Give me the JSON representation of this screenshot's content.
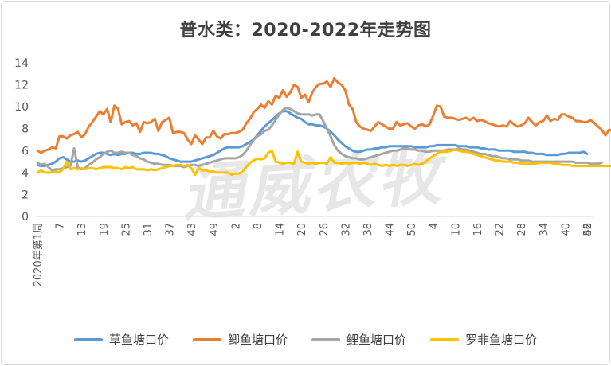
{
  "chart_data": {
    "type": "line",
    "title": "普水类：2020-2022年走势图",
    "watermark": "通威农牧",
    "ylim": [
      0,
      14
    ],
    "yticks": [
      0,
      2,
      4,
      6,
      8,
      10,
      12,
      14
    ],
    "grid": false,
    "legend_position": "bottom",
    "x_first_label": "2020年第1周",
    "x_tick_labels": [
      "7",
      "13",
      "19",
      "25",
      "31",
      "37",
      "43",
      "49",
      "2",
      "8",
      "14",
      "20",
      "26",
      "32",
      "38",
      "44",
      "50",
      "4",
      "10",
      "16",
      "22",
      "28",
      "34",
      "40",
      "46",
      "52"
    ],
    "colors": {
      "草鱼塘口价": "#5b9bd5",
      "鲫鱼塘口价": "#ed7d31",
      "鲤鱼塘口价": "#a5a5a5",
      "罗非鱼塘口价": "#ffc000"
    },
    "series": [
      {
        "name": "草鱼塘口价",
        "values": [
          4.7,
          4.6,
          4.6,
          4.7,
          4.8,
          5.0,
          5.3,
          5.4,
          5.2,
          5.0,
          5.0,
          5.1,
          5.0,
          5.1,
          5.3,
          5.5,
          5.7,
          5.8,
          5.8,
          5.7,
          5.6,
          5.7,
          5.6,
          5.7,
          5.7,
          5.8,
          5.8,
          5.7,
          5.7,
          5.8,
          5.8,
          5.8,
          5.7,
          5.7,
          5.6,
          5.5,
          5.3,
          5.2,
          5.1,
          5.0,
          5.0,
          5.0,
          5.0,
          5.1,
          5.2,
          5.3,
          5.4,
          5.5,
          5.6,
          5.8,
          6.0,
          6.2,
          6.3,
          6.3,
          6.3,
          6.3,
          6.4,
          6.6,
          6.8,
          7.0,
          7.4,
          7.8,
          8.2,
          8.5,
          8.8,
          9.1,
          9.4,
          9.6,
          9.6,
          9.4,
          9.2,
          9.0,
          8.9,
          8.6,
          8.4,
          8.4,
          8.3,
          8.3,
          8.2,
          8.0,
          7.7,
          7.4,
          7.0,
          6.7,
          6.4,
          6.2,
          6.0,
          5.9,
          5.9,
          6.0,
          6.1,
          6.1,
          6.2,
          6.2,
          6.3,
          6.3,
          6.4,
          6.4,
          6.4,
          6.4,
          6.4,
          6.4,
          6.4,
          6.3,
          6.3,
          6.3,
          6.3,
          6.4,
          6.4,
          6.5,
          6.5,
          6.5,
          6.5,
          6.5,
          6.5,
          6.4,
          6.4,
          6.4,
          6.3,
          6.3,
          6.3,
          6.2,
          6.2,
          6.1,
          6.1,
          6.1,
          6.0,
          6.0,
          6.0,
          6.0,
          5.9,
          5.9,
          5.9,
          5.9,
          5.8,
          5.8,
          5.7,
          5.7,
          5.7,
          5.6,
          5.6,
          5.6,
          5.6,
          5.7,
          5.7,
          5.8,
          5.8,
          5.8,
          5.8,
          5.9,
          5.7
        ]
      },
      {
        "name": "鲫鱼塘口价",
        "values": [
          6.0,
          5.8,
          6.0,
          6.1,
          6.3,
          6.2,
          7.3,
          7.3,
          7.1,
          7.4,
          7.5,
          7.7,
          7.2,
          7.5,
          8.2,
          8.6,
          9.1,
          9.6,
          9.3,
          9.8,
          8.6,
          10.1,
          9.8,
          8.4,
          8.6,
          8.7,
          8.3,
          8.5,
          7.7,
          8.6,
          8.5,
          8.6,
          8.9,
          7.8,
          8.6,
          8.8,
          9.0,
          7.6,
          7.7,
          7.7,
          7.6,
          7.0,
          6.6,
          7.4,
          7.0,
          6.6,
          7.2,
          7.2,
          7.8,
          7.3,
          7.1,
          7.5,
          7.5,
          7.6,
          7.6,
          7.7,
          7.9,
          8.5,
          8.9,
          9.5,
          9.8,
          10.2,
          9.9,
          10.5,
          10.2,
          11.0,
          10.8,
          11.5,
          10.9,
          11.3,
          12.0,
          11.8,
          10.8,
          11.1,
          10.4,
          11.3,
          11.8,
          12.1,
          12.1,
          12.3,
          11.8,
          12.6,
          12.2,
          12.0,
          11.5,
          10.2,
          9.8,
          8.6,
          8.2,
          8.0,
          7.9,
          7.8,
          8.2,
          8.6,
          8.4,
          8.2,
          8.0,
          8.0,
          8.6,
          8.3,
          8.4,
          8.5,
          8.2,
          8.0,
          8.3,
          8.4,
          8.2,
          8.4,
          9.2,
          10.1,
          10.0,
          9.1,
          9.0,
          9.0,
          8.9,
          8.8,
          8.9,
          9.0,
          8.8,
          9.0,
          8.7,
          8.8,
          8.7,
          8.5,
          8.4,
          8.3,
          8.2,
          8.3,
          8.2,
          8.7,
          8.4,
          8.2,
          8.3,
          8.5,
          9.0,
          8.6,
          8.3,
          8.6,
          8.7,
          9.2,
          8.7,
          8.9,
          8.8,
          9.3,
          9.3,
          9.1,
          9.0,
          8.7,
          8.7,
          8.6,
          8.6,
          8.8,
          8.5,
          8.2,
          7.9,
          7.4,
          7.9,
          7.8,
          7.7,
          7.9,
          8.4
        ]
      },
      {
        "name": "鲤鱼塘口价",
        "values": [
          4.9,
          4.7,
          4.8,
          4.5,
          4.2,
          4.3,
          4.3,
          4.4,
          4.5,
          4.6,
          6.2,
          4.5,
          4.3,
          4.4,
          4.7,
          4.9,
          5.2,
          5.4,
          5.7,
          5.9,
          6.0,
          5.8,
          5.8,
          5.9,
          5.8,
          5.8,
          5.6,
          5.5,
          5.3,
          5.2,
          5.0,
          4.9,
          4.8,
          4.8,
          4.7,
          4.7,
          4.7,
          4.6,
          4.6,
          4.6,
          4.5,
          4.6,
          4.7,
          4.7,
          4.6,
          4.7,
          4.8,
          4.9,
          5.0,
          5.1,
          5.2,
          5.3,
          5.3,
          5.3,
          5.3,
          5.4,
          5.6,
          6.0,
          6.5,
          7.0,
          7.3,
          7.5,
          7.8,
          7.9,
          8.3,
          8.8,
          9.3,
          9.7,
          9.9,
          9.8,
          9.6,
          9.4,
          9.3,
          9.3,
          9.3,
          9.2,
          9.3,
          9.3,
          8.7,
          8.0,
          7.3,
          6.5,
          6.0,
          5.7,
          5.5,
          5.4,
          5.3,
          5.3,
          5.2,
          5.2,
          5.3,
          5.4,
          5.5,
          5.6,
          5.7,
          5.8,
          5.9,
          6.0,
          6.0,
          6.1,
          6.2,
          6.2,
          6.1,
          6.1,
          6.0,
          6.0,
          5.9,
          5.9,
          6.0,
          6.0,
          6.0,
          6.0,
          6.1,
          6.1,
          6.1,
          6.2,
          6.1,
          6.1,
          6.0,
          5.9,
          5.8,
          5.7,
          5.7,
          5.6,
          5.5,
          5.5,
          5.4,
          5.3,
          5.3,
          5.2,
          5.2,
          5.2,
          5.1,
          5.1,
          5.1,
          5.0,
          5.0,
          5.0,
          5.0,
          5.0,
          5.0,
          5.0,
          5.0,
          5.0,
          5.0,
          5.0,
          5.0,
          4.9,
          4.9,
          4.9,
          4.9,
          4.8,
          4.8,
          4.8,
          4.9
        ]
      },
      {
        "name": "罗非鱼塘口价",
        "values": [
          4.0,
          4.2,
          4.0,
          4.0,
          4.0,
          4.1,
          4.0,
          4.3,
          5.0,
          4.3,
          4.4,
          4.3,
          4.4,
          4.3,
          4.4,
          4.4,
          4.3,
          4.4,
          4.5,
          4.5,
          4.5,
          4.4,
          4.4,
          4.3,
          4.5,
          4.4,
          4.5,
          4.3,
          4.3,
          4.3,
          4.2,
          4.3,
          4.2,
          4.3,
          4.4,
          4.5,
          4.6,
          4.6,
          4.7,
          4.7,
          4.6,
          4.7,
          4.4,
          3.8,
          4.4,
          4.2,
          4.2,
          4.1,
          4.1,
          4.0,
          4.0,
          4.0,
          4.0,
          3.8,
          3.9,
          3.9,
          4.1,
          4.5,
          4.9,
          5.1,
          5.3,
          5.2,
          5.3,
          5.8,
          6.0,
          5.0,
          4.9,
          4.8,
          4.9,
          4.9,
          4.8,
          5.9,
          5.0,
          4.9,
          4.8,
          4.9,
          4.8,
          4.9,
          4.9,
          4.8,
          5.4,
          4.9,
          4.9,
          4.8,
          4.9,
          4.8,
          4.9,
          4.9,
          4.8,
          4.9,
          4.8,
          4.7,
          4.8,
          4.7,
          4.6,
          4.7,
          4.6,
          4.7,
          4.6,
          4.7,
          4.7,
          4.6,
          4.7,
          4.8,
          4.7,
          4.8,
          5.0,
          5.3,
          5.5,
          5.7,
          5.9,
          5.9,
          5.9,
          6.0,
          6.1,
          6.0,
          5.9,
          5.9,
          5.8,
          5.7,
          5.6,
          5.5,
          5.4,
          5.3,
          5.2,
          5.1,
          5.1,
          5.0,
          5.0,
          5.0,
          4.9,
          4.9,
          4.8,
          4.8,
          4.8,
          4.8,
          4.8,
          4.9,
          4.9,
          4.9,
          4.9,
          4.8,
          4.8,
          4.7,
          4.7,
          4.7,
          4.6,
          4.6,
          4.6,
          4.6,
          4.6,
          4.6,
          4.6,
          4.6,
          4.6,
          4.6,
          4.6,
          4.6,
          4.6
        ]
      }
    ]
  }
}
